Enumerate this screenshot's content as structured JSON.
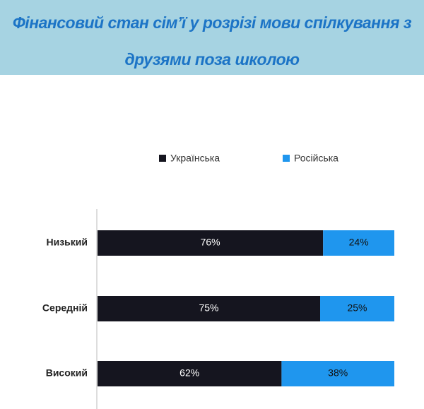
{
  "chart_data": {
    "type": "stacked-bar-horizontal",
    "title": "Фінансовий стан сім’ї у розрізі мови спілкування з друзями поза школою",
    "categories": [
      "Низький",
      "Середній",
      "Високий"
    ],
    "series": [
      {
        "name": "Українська",
        "color": "#15151f",
        "values": [
          76,
          75,
          62
        ],
        "value_labels": [
          "76%",
          "75%",
          "62%"
        ]
      },
      {
        "name": "Російська",
        "color": "#1f96ee",
        "values": [
          24,
          25,
          38
        ],
        "value_labels": [
          "24%",
          "25%",
          "38%"
        ]
      }
    ]
  }
}
